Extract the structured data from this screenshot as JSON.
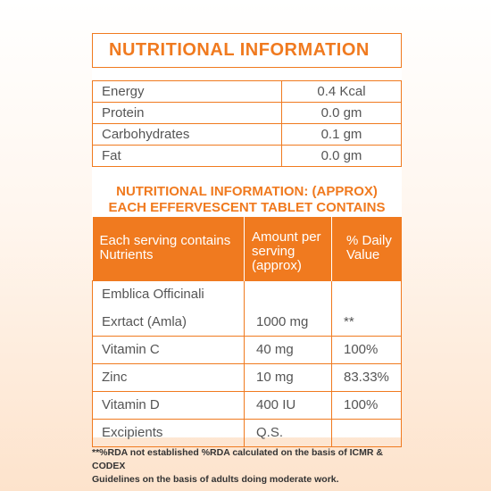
{
  "title": "NUTRITIONAL INFORMATION",
  "summary": [
    {
      "label": "Energy",
      "value": "0.4 Kcal"
    },
    {
      "label": "Protein",
      "value": "0.0 gm"
    },
    {
      "label": "Carbohydrates",
      "value": "0.1 gm"
    },
    {
      "label": "Fat",
      "value": "0.0 gm"
    }
  ],
  "subtitle_line1": "NUTRITIONAL INFORMATION: (APPROX)",
  "subtitle_line2": "EACH EFFERVESCENT TABLET CONTAINS",
  "headers": {
    "col1_line1": "Each serving contains",
    "col1_line2": "Nutrients",
    "col2_line1": "Amount per",
    "col2_line2": "serving",
    "col2_line3": "(approx)",
    "col3_line1": "% Daily",
    "col3_line2": "Value"
  },
  "rows": [
    {
      "name": "Emblica Officinali",
      "amount": "",
      "dv": ""
    },
    {
      "name": "Exrtact (Amla)",
      "amount": "1000 mg",
      "dv": "**"
    },
    {
      "name": "Vitamin C",
      "amount": "40 mg",
      "dv": "100%"
    },
    {
      "name": "Zinc",
      "amount": "10 mg",
      "dv": "83.33%"
    },
    {
      "name": "Vitamin D",
      "amount": "400 IU",
      "dv": "100%"
    },
    {
      "name": "Excipients",
      "amount": "Q.S.",
      "dv": ""
    }
  ],
  "footnote_line1": "**%RDA not established %RDA calculated on the basis of ICMR & CODEX",
  "footnote_line2": "Guidelines on the basis of adults doing moderate work.",
  "colors": {
    "accent": "#f07a1f",
    "text": "#555555"
  }
}
